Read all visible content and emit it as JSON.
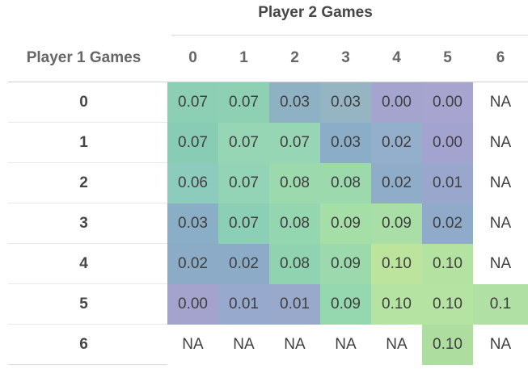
{
  "title": "Player 2 Games",
  "row_header_label": "Player 1 Games",
  "col_headers": [
    "0",
    "1",
    "2",
    "3",
    "4",
    "5",
    "6"
  ],
  "table": {
    "rows": [
      {
        "label": "0",
        "cells": [
          {
            "v": "0.07",
            "bg": "#8ccfb5"
          },
          {
            "v": "0.07",
            "bg": "#8ed0b4"
          },
          {
            "v": "0.03",
            "bg": "#8fb1c4"
          },
          {
            "v": "0.03",
            "bg": "#95b5c3"
          },
          {
            "v": "0.00",
            "bg": "#a5a4cf"
          },
          {
            "v": "0.00",
            "bg": "#a7a5cf"
          },
          {
            "v": "NA",
            "bg": "#ffffff"
          }
        ]
      },
      {
        "label": "1",
        "cells": [
          {
            "v": "0.07",
            "bg": "#89ccb5"
          },
          {
            "v": "0.07",
            "bg": "#96d6b4"
          },
          {
            "v": "0.07",
            "bg": "#96d6b4"
          },
          {
            "v": "0.03",
            "bg": "#8badc7"
          },
          {
            "v": "0.02",
            "bg": "#93afcb"
          },
          {
            "v": "0.00",
            "bg": "#a3a3d0"
          },
          {
            "v": "NA",
            "bg": "#ffffff"
          }
        ]
      },
      {
        "label": "2",
        "cells": [
          {
            "v": "0.06",
            "bg": "#8dccbd"
          },
          {
            "v": "0.07",
            "bg": "#93d4b6"
          },
          {
            "v": "0.08",
            "bg": "#9cdaae"
          },
          {
            "v": "0.08",
            "bg": "#9cdaae"
          },
          {
            "v": "0.02",
            "bg": "#8fadc9"
          },
          {
            "v": "0.01",
            "bg": "#9aa7cd"
          },
          {
            "v": "NA",
            "bg": "#ffffff"
          }
        ]
      },
      {
        "label": "3",
        "cells": [
          {
            "v": "0.03",
            "bg": "#8aaec6"
          },
          {
            "v": "0.07",
            "bg": "#8bcfb6"
          },
          {
            "v": "0.08",
            "bg": "#93d6b0"
          },
          {
            "v": "0.09",
            "bg": "#a6dea8"
          },
          {
            "v": "0.09",
            "bg": "#a9dfa6"
          },
          {
            "v": "0.02",
            "bg": "#8fabc9"
          },
          {
            "v": "NA",
            "bg": "#ffffff"
          }
        ]
      },
      {
        "label": "4",
        "cells": [
          {
            "v": "0.02",
            "bg": "#8cabc7"
          },
          {
            "v": "0.02",
            "bg": "#8cabc7"
          },
          {
            "v": "0.08",
            "bg": "#90d3b1"
          },
          {
            "v": "0.09",
            "bg": "#9cd9ac"
          },
          {
            "v": "0.10",
            "bg": "#bce49d"
          },
          {
            "v": "0.10",
            "bg": "#b3e2a1"
          },
          {
            "v": "NA",
            "bg": "#ffffff"
          }
        ]
      },
      {
        "label": "5",
        "cells": [
          {
            "v": "0.00",
            "bg": "#a4a3ce"
          },
          {
            "v": "0.01",
            "bg": "#97a9cc"
          },
          {
            "v": "0.01",
            "bg": "#98a9cc"
          },
          {
            "v": "0.09",
            "bg": "#95d7ae"
          },
          {
            "v": "0.10",
            "bg": "#b5e3a1"
          },
          {
            "v": "0.10",
            "bg": "#b5e3a1"
          },
          {
            "v": "0.1",
            "bg": "#b0e0a3"
          }
        ]
      },
      {
        "label": "6",
        "cells": [
          {
            "v": "NA",
            "bg": "#ffffff"
          },
          {
            "v": "NA",
            "bg": "#ffffff"
          },
          {
            "v": "NA",
            "bg": "#ffffff"
          },
          {
            "v": "NA",
            "bg": "#ffffff"
          },
          {
            "v": "NA",
            "bg": "#ffffff"
          },
          {
            "v": "0.10",
            "bg": "#aede9f"
          },
          {
            "v": "NA",
            "bg": "#ffffff"
          }
        ]
      }
    ]
  },
  "chart_data": {
    "type": "heatmap",
    "title": "Player 2 Games",
    "xlabel": "Player 2 Games",
    "ylabel": "Player 1 Games",
    "columns": [
      "0",
      "1",
      "2",
      "3",
      "4",
      "5",
      "6"
    ],
    "rows": [
      "0",
      "1",
      "2",
      "3",
      "4",
      "5",
      "6"
    ],
    "values": [
      [
        0.07,
        0.07,
        0.03,
        0.03,
        0.0,
        0.0,
        null
      ],
      [
        0.07,
        0.07,
        0.07,
        0.03,
        0.02,
        0.0,
        null
      ],
      [
        0.06,
        0.07,
        0.08,
        0.08,
        0.02,
        0.01,
        null
      ],
      [
        0.03,
        0.07,
        0.08,
        0.09,
        0.09,
        0.02,
        null
      ],
      [
        0.02,
        0.02,
        0.08,
        0.09,
        0.1,
        0.1,
        null
      ],
      [
        0.0,
        0.01,
        0.01,
        0.09,
        0.1,
        0.1,
        0.1
      ],
      [
        null,
        null,
        null,
        null,
        null,
        0.1,
        null
      ]
    ],
    "missing_label": "NA",
    "color_scale": {
      "low_color": "#a5a4cf",
      "mid_color": "#8ccfb5",
      "high_color": "#bce49d",
      "low_value": 0.0,
      "high_value": 0.1
    },
    "legend": "none",
    "grid": "off"
  }
}
